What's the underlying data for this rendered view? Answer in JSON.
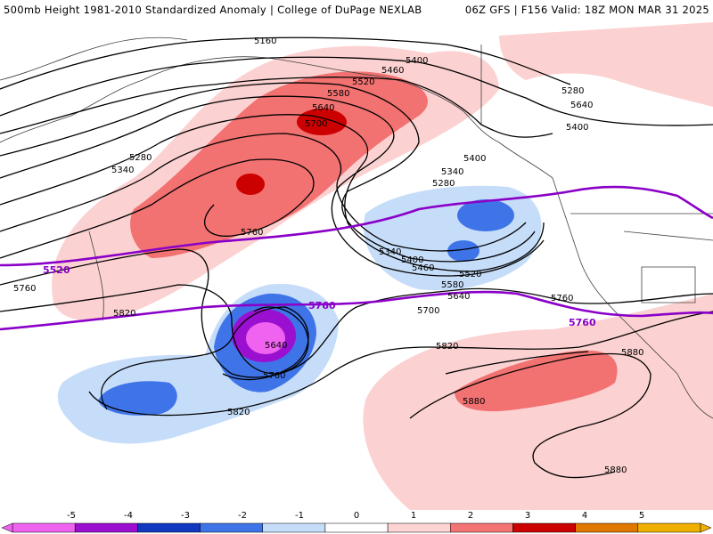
{
  "header": {
    "left_title": "500mb Height 1981-2010 Standardized Anomaly | College of DuPage NEXLAB",
    "right_title": "06Z GFS | F156 Valid: 18Z MON MAR 31 2025"
  },
  "contour_labels": [
    "5160",
    "5400",
    "5460",
    "5520",
    "5580",
    "5640",
    "5700",
    "5280",
    "5340",
    "5400",
    "5340",
    "5280",
    "5760",
    "5400",
    "5460",
    "5520",
    "5580",
    "5640",
    "5700",
    "5760",
    "5340",
    "5400",
    "5280",
    "5640",
    "5820",
    "5760",
    "5640",
    "5820",
    "5760",
    "5880",
    "5880",
    "5880",
    "5820"
  ],
  "special_labels": [
    "5520",
    "5760",
    "5760"
  ],
  "colorbar": {
    "ticks": [
      "-5",
      "-4",
      "-3",
      "-2",
      "-1",
      "0",
      "1",
      "2",
      "3",
      "4",
      "5"
    ],
    "colors": [
      "#f063f0",
      "#9a0fd0",
      "#1039c0",
      "#3f74e8",
      "#c6ddf9",
      "#ffffff",
      "#fdd3d3",
      "#f47373",
      "#cc0000",
      "#e07800",
      "#f0b000"
    ]
  },
  "colors": {
    "contour": "#000000",
    "special_contour": "#8a00c8",
    "coast": "#404040"
  }
}
